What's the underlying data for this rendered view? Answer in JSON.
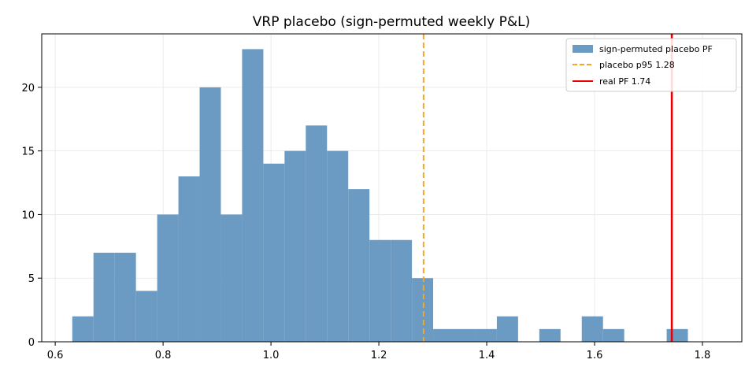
{
  "chart_data": {
    "type": "bar",
    "title": "VRP placebo (sign-permuted weekly P&L)",
    "xlabel": "",
    "ylabel": "",
    "xlim": [
      0.575,
      1.873
    ],
    "ylim": [
      0,
      24.2
    ],
    "x_ticks": [
      {
        "value": 0.6,
        "label": "0.6"
      },
      {
        "value": 0.8,
        "label": "0.8"
      },
      {
        "value": 1.0,
        "label": "1.0"
      },
      {
        "value": 1.2,
        "label": "1.2"
      },
      {
        "value": 1.4,
        "label": "1.4"
      },
      {
        "value": 1.6,
        "label": "1.6"
      },
      {
        "value": 1.8,
        "label": "1.8"
      }
    ],
    "y_ticks": [
      {
        "value": 0,
        "label": "0"
      },
      {
        "value": 5,
        "label": "5"
      },
      {
        "value": 10,
        "label": "10"
      },
      {
        "value": 15,
        "label": "15"
      },
      {
        "value": 20,
        "label": "20"
      }
    ],
    "grid": true,
    "legend_position": "top-right",
    "series": [
      {
        "name": "sign-permuted placebo PF",
        "kind": "histogram",
        "color": "#6b9bc3",
        "bin_start": 0.6316,
        "bin_width": 0.03936,
        "counts": [
          2,
          7,
          7,
          4,
          10,
          13,
          20,
          10,
          23,
          14,
          15,
          17,
          15,
          12,
          8,
          8,
          5,
          1,
          1,
          1,
          2,
          0,
          1,
          0,
          2,
          1,
          0,
          0,
          1
        ]
      }
    ],
    "lines": [
      {
        "name": "placebo p95 1.28",
        "x": 1.2829,
        "color": "#f5a623",
        "style": "dashed"
      },
      {
        "name": "real PF 1.74",
        "x": 1.7432,
        "color": "#ee0000",
        "style": "solid"
      }
    ]
  }
}
